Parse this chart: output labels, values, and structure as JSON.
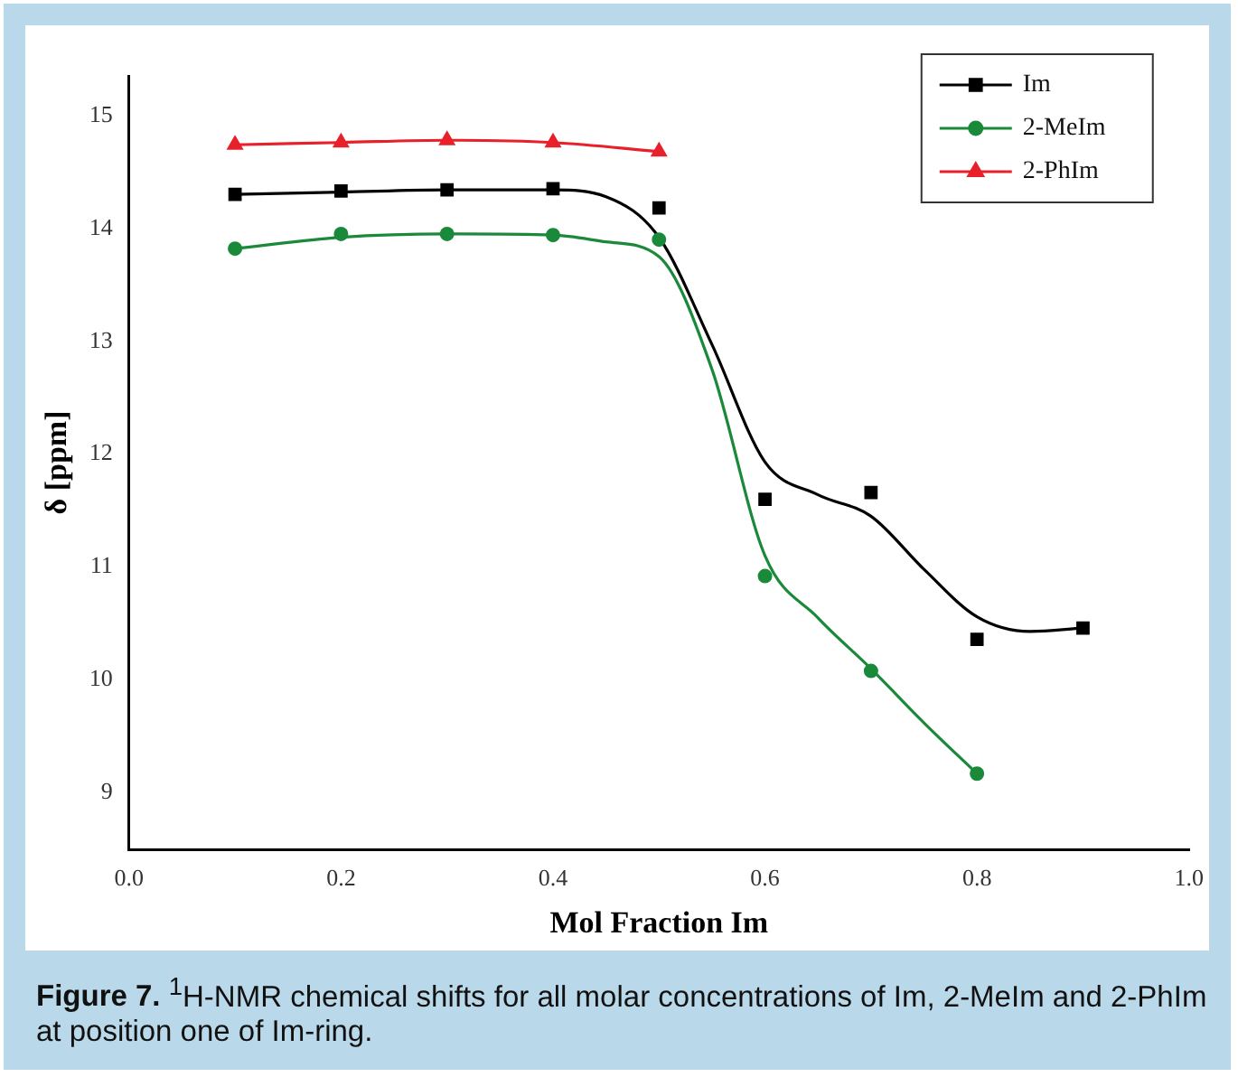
{
  "chart_data": {
    "type": "scatter",
    "xlabel": "Mol Fraction Im",
    "ylabel": "δ [ppm]",
    "xlim": [
      0,
      1.0
    ],
    "xticks": [
      {
        "value": 0,
        "label": "0.0"
      },
      0.2,
      0.4,
      0.6,
      0.8,
      {
        "value": 1,
        "label": "1.0"
      }
    ],
    "ylim": [
      8.5,
      15.35
    ],
    "yticks": [
      9,
      10,
      11,
      12,
      13,
      14,
      15
    ],
    "grid": false,
    "legend": "top right",
    "series": [
      {
        "name": "Im",
        "type": "scatter",
        "marker": "square",
        "color": "#000000",
        "x": [
          0.1,
          0.2,
          0.3,
          0.4,
          0.5,
          0.6,
          0.7,
          0.8,
          0.9
        ],
        "values": [
          14.3,
          14.33,
          14.34,
          14.35,
          14.18,
          11.6,
          11.66,
          10.36,
          10.46
        ]
      },
      {
        "name": "2-MeIm",
        "type": "scatter",
        "marker": "circle",
        "color": "#1a8a3a",
        "x": [
          0.1,
          0.2,
          0.3,
          0.4,
          0.5,
          0.6,
          0.7,
          0.8
        ],
        "values": [
          13.82,
          13.95,
          13.95,
          13.94,
          13.9,
          10.92,
          10.08,
          9.17
        ]
      },
      {
        "name": "2-PhIm",
        "type": "scatter",
        "marker": "triangle",
        "color": "#e8202a",
        "x": [
          0.1,
          0.2,
          0.3,
          0.4,
          0.5
        ],
        "values": [
          14.74,
          14.76,
          14.78,
          14.76,
          14.68
        ]
      },
      {
        "type": "line",
        "marker": "none",
        "color": "#000000",
        "x": [
          0.1,
          0.2,
          0.3,
          0.4,
          0.45,
          0.5,
          0.55,
          0.6,
          0.65,
          0.7,
          0.75,
          0.8,
          0.85,
          0.9
        ],
        "values": [
          14.3,
          14.32,
          14.34,
          14.34,
          14.28,
          13.92,
          12.97,
          11.93,
          11.64,
          11.45,
          10.98,
          10.56,
          10.43,
          10.46
        ]
      },
      {
        "type": "line",
        "marker": "none",
        "color": "#1a8a3a",
        "x": [
          0.1,
          0.2,
          0.3,
          0.4,
          0.45,
          0.5,
          0.55,
          0.6,
          0.65,
          0.7,
          0.75,
          0.8
        ],
        "values": [
          13.82,
          13.92,
          13.95,
          13.94,
          13.88,
          13.75,
          12.75,
          11.1,
          10.55,
          10.1,
          9.62,
          9.17
        ]
      },
      {
        "type": "line",
        "marker": "none",
        "color": "#e8202a",
        "x": [
          0.1,
          0.2,
          0.3,
          0.4,
          0.5
        ],
        "values": [
          14.74,
          14.76,
          14.78,
          14.76,
          14.68
        ]
      }
    ],
    "annotations": [
      "Figure 7. $^{1}$H-NMR chemical shifts for all molar concentrations of Im, 2-MeIm and 2-PhIm at position one of Im-ring."
    ]
  }
}
